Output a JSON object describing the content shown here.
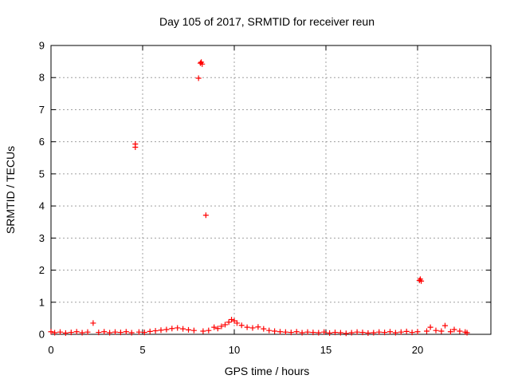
{
  "chart_data": {
    "type": "scatter",
    "title": "Day 105 of 2017, SRMTID for receiver reun",
    "xlabel": "GPS time / hours",
    "ylabel": "SRMTID / TECUs",
    "xlim": [
      0,
      24
    ],
    "ylim": [
      0,
      9
    ],
    "xticks": [
      0,
      5,
      10,
      15,
      20
    ],
    "yticks": [
      0,
      1,
      2,
      3,
      4,
      5,
      6,
      7,
      8,
      9
    ],
    "grid": true,
    "marker": "plus",
    "color": "#ff0000",
    "series": [
      {
        "name": "SRMTID",
        "points": [
          [
            0.0,
            0.08
          ],
          [
            0.2,
            0.05
          ],
          [
            0.5,
            0.07
          ],
          [
            0.8,
            0.04
          ],
          [
            1.1,
            0.06
          ],
          [
            1.4,
            0.08
          ],
          [
            1.7,
            0.05
          ],
          [
            2.0,
            0.07
          ],
          [
            2.3,
            0.35
          ],
          [
            2.6,
            0.06
          ],
          [
            2.9,
            0.08
          ],
          [
            3.2,
            0.05
          ],
          [
            3.5,
            0.07
          ],
          [
            3.8,
            0.06
          ],
          [
            4.1,
            0.08
          ],
          [
            4.4,
            0.05
          ],
          [
            4.6,
            5.93
          ],
          [
            4.6,
            5.83
          ],
          [
            4.8,
            0.07
          ],
          [
            5.1,
            0.06
          ],
          [
            5.4,
            0.09
          ],
          [
            5.7,
            0.11
          ],
          [
            6.0,
            0.13
          ],
          [
            6.3,
            0.15
          ],
          [
            6.6,
            0.18
          ],
          [
            6.9,
            0.2
          ],
          [
            7.2,
            0.17
          ],
          [
            7.5,
            0.14
          ],
          [
            7.8,
            0.12
          ],
          [
            8.05,
            7.98
          ],
          [
            8.15,
            8.45
          ],
          [
            8.25,
            8.42
          ],
          [
            8.2,
            8.48
          ],
          [
            8.3,
            0.1
          ],
          [
            8.45,
            3.71
          ],
          [
            8.6,
            0.12
          ],
          [
            8.9,
            0.22
          ],
          [
            9.1,
            0.18
          ],
          [
            9.3,
            0.25
          ],
          [
            9.5,
            0.3
          ],
          [
            9.7,
            0.38
          ],
          [
            9.85,
            0.46
          ],
          [
            10.0,
            0.42
          ],
          [
            10.15,
            0.35
          ],
          [
            10.4,
            0.28
          ],
          [
            10.7,
            0.22
          ],
          [
            11.0,
            0.2
          ],
          [
            11.3,
            0.23
          ],
          [
            11.6,
            0.17
          ],
          [
            11.9,
            0.12
          ],
          [
            12.2,
            0.1
          ],
          [
            12.5,
            0.08
          ],
          [
            12.8,
            0.07
          ],
          [
            13.1,
            0.06
          ],
          [
            13.4,
            0.08
          ],
          [
            13.7,
            0.05
          ],
          [
            14.0,
            0.07
          ],
          [
            14.3,
            0.06
          ],
          [
            14.6,
            0.05
          ],
          [
            14.9,
            0.07
          ],
          [
            15.2,
            0.04
          ],
          [
            15.5,
            0.06
          ],
          [
            15.8,
            0.05
          ],
          [
            16.1,
            0.03
          ],
          [
            16.4,
            0.05
          ],
          [
            16.7,
            0.07
          ],
          [
            17.0,
            0.06
          ],
          [
            17.3,
            0.04
          ],
          [
            17.6,
            0.05
          ],
          [
            17.9,
            0.07
          ],
          [
            18.2,
            0.06
          ],
          [
            18.5,
            0.08
          ],
          [
            18.8,
            0.05
          ],
          [
            19.1,
            0.07
          ],
          [
            19.4,
            0.09
          ],
          [
            19.7,
            0.06
          ],
          [
            20.0,
            0.08
          ],
          [
            20.1,
            1.68
          ],
          [
            20.15,
            1.72
          ],
          [
            20.2,
            1.66
          ],
          [
            20.5,
            0.1
          ],
          [
            20.7,
            0.22
          ],
          [
            21.0,
            0.12
          ],
          [
            21.3,
            0.1
          ],
          [
            21.5,
            0.27
          ],
          [
            21.8,
            0.08
          ],
          [
            22.0,
            0.15
          ],
          [
            22.3,
            0.1
          ],
          [
            22.6,
            0.07
          ],
          [
            22.7,
            0.05
          ]
        ]
      }
    ]
  }
}
